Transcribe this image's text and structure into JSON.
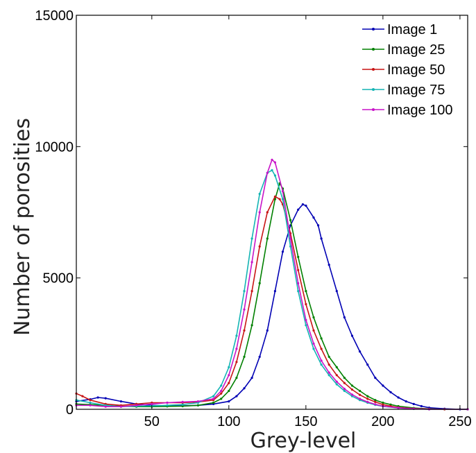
{
  "chart_data": {
    "type": "line",
    "title": "",
    "xlabel": "Grey-level",
    "ylabel": "Number of porosities",
    "xlim": [
      1,
      255
    ],
    "ylim": [
      0,
      15000
    ],
    "xticks": [
      50,
      100,
      150,
      200,
      250
    ],
    "yticks": [
      0,
      5000,
      10000,
      15000
    ],
    "grid": false,
    "legend_position": "top-right",
    "series": [
      {
        "name": "Image 1",
        "color": "#0000b4",
        "points": [
          [
            1,
            300
          ],
          [
            10,
            380
          ],
          [
            15,
            450
          ],
          [
            20,
            420
          ],
          [
            30,
            300
          ],
          [
            40,
            200
          ],
          [
            50,
            150
          ],
          [
            60,
            130
          ],
          [
            70,
            130
          ],
          [
            80,
            150
          ],
          [
            90,
            200
          ],
          [
            100,
            300
          ],
          [
            105,
            500
          ],
          [
            110,
            800
          ],
          [
            115,
            1200
          ],
          [
            120,
            2000
          ],
          [
            125,
            3000
          ],
          [
            130,
            4500
          ],
          [
            135,
            6000
          ],
          [
            140,
            7000
          ],
          [
            145,
            7600
          ],
          [
            148,
            7800
          ],
          [
            150,
            7750
          ],
          [
            155,
            7300
          ],
          [
            158,
            7000
          ],
          [
            160,
            6500
          ],
          [
            165,
            5500
          ],
          [
            170,
            4500
          ],
          [
            175,
            3500
          ],
          [
            180,
            2800
          ],
          [
            185,
            2200
          ],
          [
            190,
            1700
          ],
          [
            195,
            1200
          ],
          [
            200,
            900
          ],
          [
            205,
            650
          ],
          [
            210,
            450
          ],
          [
            215,
            300
          ],
          [
            220,
            200
          ],
          [
            225,
            120
          ],
          [
            230,
            60
          ],
          [
            240,
            20
          ],
          [
            250,
            0
          ],
          [
            255,
            0
          ]
        ]
      },
      {
        "name": "Image 25",
        "color": "#008000",
        "points": [
          [
            1,
            200
          ],
          [
            10,
            180
          ],
          [
            20,
            150
          ],
          [
            30,
            120
          ],
          [
            40,
            100
          ],
          [
            50,
            100
          ],
          [
            60,
            110
          ],
          [
            70,
            120
          ],
          [
            80,
            150
          ],
          [
            90,
            250
          ],
          [
            95,
            400
          ],
          [
            100,
            700
          ],
          [
            105,
            1200
          ],
          [
            110,
            2000
          ],
          [
            115,
            3200
          ],
          [
            120,
            4800
          ],
          [
            125,
            6500
          ],
          [
            130,
            8000
          ],
          [
            133,
            8600
          ],
          [
            135,
            8400
          ],
          [
            140,
            7200
          ],
          [
            145,
            5800
          ],
          [
            150,
            4500
          ],
          [
            155,
            3500
          ],
          [
            160,
            2700
          ],
          [
            165,
            2000
          ],
          [
            170,
            1600
          ],
          [
            175,
            1200
          ],
          [
            180,
            900
          ],
          [
            185,
            700
          ],
          [
            190,
            500
          ],
          [
            195,
            350
          ],
          [
            200,
            250
          ],
          [
            205,
            180
          ],
          [
            210,
            120
          ],
          [
            220,
            50
          ],
          [
            230,
            15
          ],
          [
            240,
            0
          ],
          [
            255,
            0
          ]
        ]
      },
      {
        "name": "Image 50",
        "color": "#c81414",
        "points": [
          [
            1,
            600
          ],
          [
            5,
            500
          ],
          [
            10,
            350
          ],
          [
            20,
            200
          ],
          [
            30,
            150
          ],
          [
            40,
            200
          ],
          [
            50,
            250
          ],
          [
            60,
            250
          ],
          [
            70,
            250
          ],
          [
            80,
            280
          ],
          [
            90,
            350
          ],
          [
            95,
            600
          ],
          [
            100,
            1000
          ],
          [
            105,
            1800
          ],
          [
            110,
            3000
          ],
          [
            115,
            4500
          ],
          [
            120,
            6200
          ],
          [
            125,
            7500
          ],
          [
            130,
            8100
          ],
          [
            133,
            8000
          ],
          [
            135,
            7800
          ],
          [
            140,
            6700
          ],
          [
            145,
            5300
          ],
          [
            150,
            4000
          ],
          [
            155,
            3000
          ],
          [
            160,
            2300
          ],
          [
            165,
            1700
          ],
          [
            170,
            1300
          ],
          [
            175,
            1000
          ],
          [
            180,
            750
          ],
          [
            185,
            550
          ],
          [
            190,
            400
          ],
          [
            195,
            280
          ],
          [
            200,
            180
          ],
          [
            205,
            120
          ],
          [
            210,
            70
          ],
          [
            220,
            30
          ],
          [
            230,
            10
          ],
          [
            240,
            0
          ],
          [
            255,
            0
          ]
        ]
      },
      {
        "name": "Image 75",
        "color": "#14b4b4",
        "points": [
          [
            1,
            350
          ],
          [
            10,
            250
          ],
          [
            20,
            150
          ],
          [
            30,
            100
          ],
          [
            40,
            120
          ],
          [
            50,
            130
          ],
          [
            60,
            150
          ],
          [
            70,
            180
          ],
          [
            80,
            250
          ],
          [
            90,
            500
          ],
          [
            95,
            900
          ],
          [
            100,
            1600
          ],
          [
            105,
            2800
          ],
          [
            110,
            4500
          ],
          [
            115,
            6500
          ],
          [
            120,
            8200
          ],
          [
            125,
            9000
          ],
          [
            128,
            9100
          ],
          [
            130,
            8900
          ],
          [
            135,
            8000
          ],
          [
            140,
            6200
          ],
          [
            145,
            4500
          ],
          [
            150,
            3200
          ],
          [
            155,
            2300
          ],
          [
            160,
            1700
          ],
          [
            165,
            1300
          ],
          [
            170,
            950
          ],
          [
            175,
            700
          ],
          [
            180,
            500
          ],
          [
            185,
            350
          ],
          [
            190,
            250
          ],
          [
            195,
            170
          ],
          [
            200,
            110
          ],
          [
            210,
            50
          ],
          [
            220,
            15
          ],
          [
            230,
            0
          ],
          [
            255,
            0
          ]
        ]
      },
      {
        "name": "Image 100",
        "color": "#c814c8",
        "points": [
          [
            1,
            150
          ],
          [
            10,
            150
          ],
          [
            20,
            100
          ],
          [
            30,
            100
          ],
          [
            40,
            150
          ],
          [
            50,
            200
          ],
          [
            60,
            250
          ],
          [
            70,
            280
          ],
          [
            80,
            300
          ],
          [
            90,
            400
          ],
          [
            95,
            700
          ],
          [
            100,
            1300
          ],
          [
            105,
            2300
          ],
          [
            110,
            3800
          ],
          [
            115,
            5600
          ],
          [
            120,
            7500
          ],
          [
            125,
            9000
          ],
          [
            128,
            9500
          ],
          [
            130,
            9400
          ],
          [
            135,
            8300
          ],
          [
            140,
            6500
          ],
          [
            145,
            4800
          ],
          [
            150,
            3400
          ],
          [
            155,
            2500
          ],
          [
            160,
            1850
          ],
          [
            165,
            1400
          ],
          [
            170,
            1050
          ],
          [
            175,
            780
          ],
          [
            180,
            560
          ],
          [
            185,
            400
          ],
          [
            190,
            280
          ],
          [
            195,
            190
          ],
          [
            200,
            120
          ],
          [
            210,
            55
          ],
          [
            220,
            20
          ],
          [
            230,
            0
          ],
          [
            255,
            0
          ]
        ]
      }
    ]
  }
}
